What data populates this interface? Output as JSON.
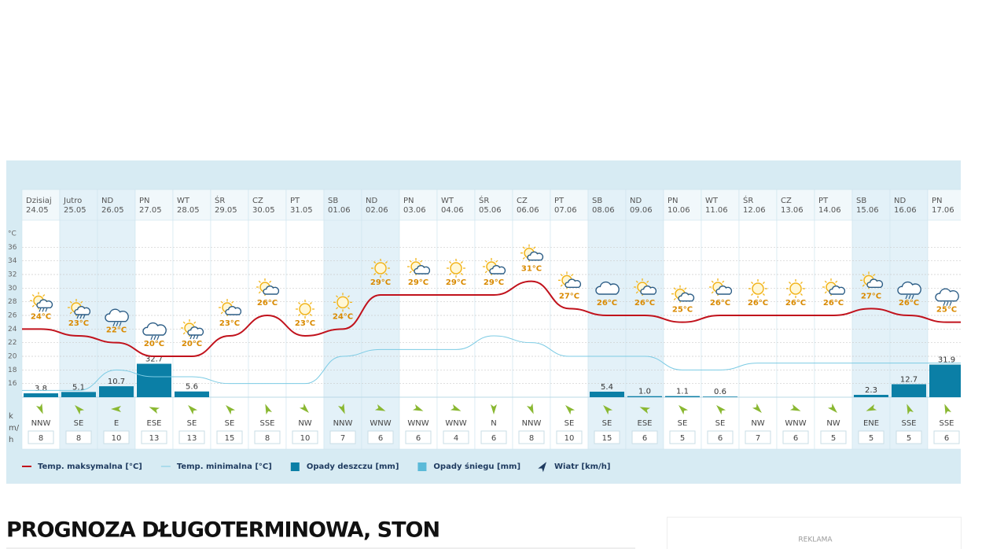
{
  "chart_data": {
    "type": "weather",
    "categories": [
      "Dzisiaj",
      "Jutro",
      "ND",
      "PN",
      "WT",
      "ŚR",
      "CZ",
      "PT",
      "SB",
      "ND",
      "PN",
      "WT",
      "ŚR",
      "CZ",
      "PT",
      "SB",
      "ND",
      "PN",
      "WT",
      "ŚR",
      "CZ",
      "PT",
      "SB",
      "ND",
      "PN"
    ],
    "dates": [
      "24.05",
      "25.05",
      "26.05",
      "27.05",
      "28.05",
      "29.05",
      "30.05",
      "31.05",
      "01.06",
      "02.06",
      "03.06",
      "04.06",
      "05.06",
      "06.06",
      "07.06",
      "08.06",
      "09.06",
      "10.06",
      "11.06",
      "12.06",
      "13.06",
      "14.06",
      "15.06",
      "16.06",
      "17.06"
    ],
    "y_unit": "°C",
    "ylim": [
      14,
      38
    ],
    "yticks": [
      16,
      18,
      20,
      22,
      24,
      26,
      28,
      30,
      32,
      34,
      36
    ],
    "grid": true,
    "y2lim": [
      0,
      160
    ],
    "series": [
      {
        "name": "Temp. maksymalna [°C]",
        "color": "#c1121c",
        "values": [
          24,
          23,
          22,
          20,
          20,
          23,
          26,
          23,
          24,
          29,
          29,
          29,
          29,
          31,
          27,
          26,
          26,
          25,
          26,
          26,
          26,
          26,
          27,
          26,
          25
        ],
        "value_labels": [
          "24°C",
          "23°C",
          "22°C",
          "20°C",
          "20°C",
          "23°C",
          "26°C",
          "23°C",
          "24°C",
          "29°C",
          "29°C",
          "29°C",
          "29°C",
          "31°C",
          "27°C",
          "26°C",
          "26°C",
          "25°C",
          "26°C",
          "26°C",
          "26°C",
          "26°C",
          "27°C",
          "26°C",
          "25°C"
        ]
      },
      {
        "name": "Temp. minimalna [°C]",
        "color": "#7ccbe4",
        "values": [
          15,
          15,
          18,
          17,
          17,
          16,
          16,
          16,
          20,
          21,
          21,
          21,
          23,
          22,
          20,
          20,
          20,
          18,
          18,
          19,
          19,
          19,
          19,
          19,
          19
        ]
      },
      {
        "name": "Opady deszczu [mm]",
        "color": "#0b7fa6",
        "axis": "y2",
        "values": [
          3.8,
          5.1,
          10.7,
          32.7,
          5.6,
          null,
          null,
          null,
          null,
          null,
          null,
          null,
          null,
          null,
          null,
          5.4,
          1.0,
          1.1,
          0.6,
          null,
          null,
          null,
          2.3,
          12.7,
          31.9
        ],
        "value_labels": [
          "3.8",
          "5.1",
          "10.7",
          "32.7",
          "5.6",
          null,
          null,
          null,
          null,
          null,
          null,
          null,
          null,
          null,
          null,
          "5.4",
          "1.0",
          "1.1",
          "0.6",
          null,
          null,
          null,
          "2.3",
          "12.7",
          "31.9"
        ]
      },
      {
        "name": "Opady śniegu [mm]",
        "color": "#5bbad8",
        "axis": "y2",
        "values": [
          null,
          null,
          null,
          null,
          null,
          null,
          null,
          null,
          null,
          null,
          null,
          null,
          null,
          null,
          null,
          null,
          null,
          null,
          null,
          null,
          null,
          null,
          null,
          null,
          null
        ]
      }
    ],
    "wind": {
      "name": "Wiatr [km/h]",
      "unit": "km/h",
      "color": "#8ab832",
      "directions": [
        "NNW",
        "SE",
        "E",
        "ESE",
        "SE",
        "SE",
        "SSE",
        "NW",
        "NNW",
        "WNW",
        "WNW",
        "WNW",
        "N",
        "NNW",
        "SE",
        "SE",
        "ESE",
        "SE",
        "SE",
        "NW",
        "WNW",
        "NW",
        "ENE",
        "SSE",
        "SSE"
      ],
      "values": [
        8,
        8,
        10,
        13,
        13,
        15,
        8,
        10,
        7,
        6,
        6,
        4,
        6,
        8,
        10,
        15,
        6,
        5,
        6,
        7,
        6,
        5,
        5,
        5,
        6
      ]
    }
  },
  "heading": "PROGNOZA DŁUGOTERMINOWA, STON",
  "ad_label": "REKLAMA"
}
